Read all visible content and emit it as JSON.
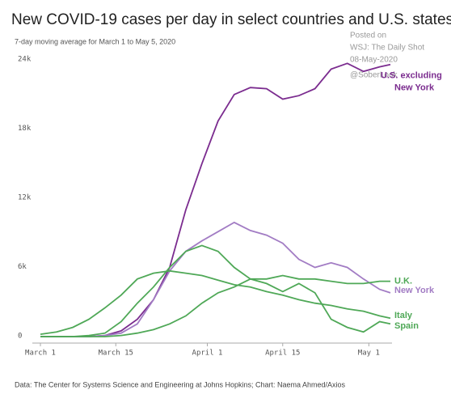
{
  "chart_data": {
    "type": "line",
    "title": "New COVID-19 cases per day in select countries and U.S. states",
    "subtitle": "7-day moving average for March 1 to May 5, 2020",
    "source": "Data: The Center for Systems Science and Engineering at Johns Hopkins; Chart: Naema Ahmed/Axios",
    "watermark": [
      "Posted on",
      "WSJ: The Daily Shot",
      "08-May-2020",
      "@SoberLook"
    ],
    "x": [
      "2020-03-01",
      "2020-03-04",
      "2020-03-07",
      "2020-03-10",
      "2020-03-13",
      "2020-03-16",
      "2020-03-19",
      "2020-03-22",
      "2020-03-25",
      "2020-03-28",
      "2020-03-31",
      "2020-04-03",
      "2020-04-06",
      "2020-04-09",
      "2020-04-12",
      "2020-04-15",
      "2020-04-18",
      "2020-04-21",
      "2020-04-24",
      "2020-04-27",
      "2020-04-30",
      "2020-05-03",
      "2020-05-05"
    ],
    "xlim": [
      "2020-03-01",
      "2020-05-05"
    ],
    "xticks": [
      {
        "value": "2020-03-01",
        "label": "March 1"
      },
      {
        "value": "2020-03-15",
        "label": "March 15"
      },
      {
        "value": "2020-04-01",
        "label": "April 1"
      },
      {
        "value": "2020-04-15",
        "label": "April 15"
      },
      {
        "value": "2020-05-01",
        "label": "May 1"
      }
    ],
    "ylim": [
      0,
      24000
    ],
    "yticks": [
      0,
      {
        "value": 6000,
        "label": "6k"
      },
      {
        "value": 12000,
        "label": "12k"
      },
      {
        "value": 18000,
        "label": "18k"
      },
      {
        "value": 24000,
        "label": "24k"
      }
    ],
    "grid": false,
    "series": [
      {
        "name": "U.S. excluding New York",
        "color": "#7b2c8f",
        "values": [
          0,
          0,
          0,
          0,
          100,
          500,
          1500,
          3200,
          6000,
          11000,
          15000,
          18700,
          21000,
          21600,
          21500,
          20600,
          20900,
          21500,
          23200,
          23700,
          23000,
          23400,
          23600
        ]
      },
      {
        "name": "New York",
        "color": "#a27cc4",
        "values": [
          0,
          0,
          0,
          0,
          100,
          300,
          1100,
          3200,
          5700,
          7400,
          8300,
          9100,
          9900,
          9200,
          8800,
          8100,
          6700,
          6000,
          6400,
          6000,
          5000,
          4100,
          3800
        ]
      },
      {
        "name": "U.K.",
        "color": "#4fa857",
        "values": [
          0,
          0,
          0,
          0,
          0,
          100,
          300,
          600,
          1100,
          1800,
          2900,
          3800,
          4300,
          5000,
          5000,
          5300,
          5000,
          5000,
          4800,
          4600,
          4600,
          4800,
          4800
        ]
      },
      {
        "name": "Italy",
        "color": "#4fa857",
        "values": [
          200,
          400,
          800,
          1500,
          2500,
          3600,
          5000,
          5500,
          5700,
          5500,
          5300,
          4900,
          4500,
          4300,
          3900,
          3600,
          3200,
          2900,
          2700,
          2400,
          2200,
          1800,
          1600
        ]
      },
      {
        "name": "Spain",
        "color": "#4fa857",
        "values": [
          0,
          0,
          0,
          100,
          300,
          1300,
          2900,
          4300,
          6000,
          7400,
          7900,
          7400,
          6000,
          5000,
          4600,
          3900,
          4600,
          3800,
          1500,
          800,
          400,
          1300,
          1100
        ]
      }
    ]
  }
}
